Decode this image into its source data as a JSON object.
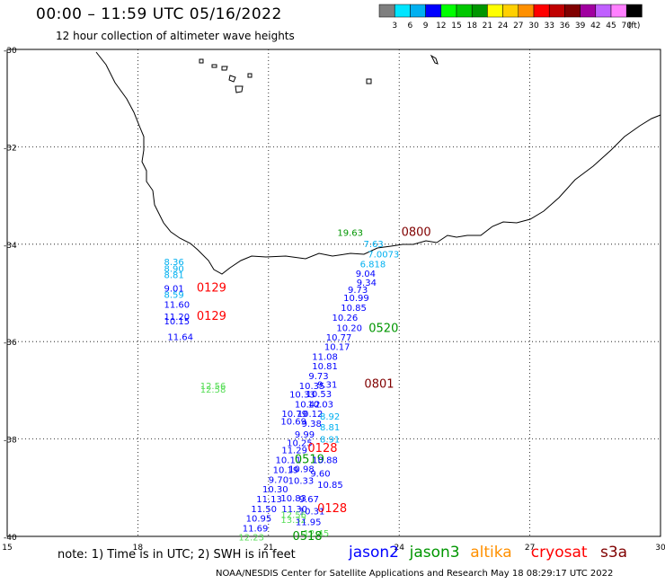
{
  "header": {
    "title": "00:00 – 11:59 UTC 05/16/2022",
    "subtitle": "12 hour collection of altimeter wave heights"
  },
  "colorbar": {
    "colors": [
      "#7f7f7f",
      "#00e5ff",
      "#00b0f0",
      "#0000ff",
      "#00ff00",
      "#00c800",
      "#009600",
      "#ffff00",
      "#ffd000",
      "#ff9000",
      "#ff0000",
      "#c00000",
      "#800000",
      "#a000a0",
      "#c060ff",
      "#ff80ff",
      "#000000"
    ],
    "labels": [
      "3",
      "6",
      "9",
      "12",
      "15",
      "18",
      "21",
      "24",
      "27",
      "30",
      "33",
      "36",
      "39",
      "42",
      "45",
      "70"
    ],
    "unit": "(ft)"
  },
  "axes": {
    "lat_labels": [
      "-30",
      "-32",
      "-34",
      "-36",
      "-38",
      "-40"
    ],
    "lon_labels": [
      "15",
      "18",
      "21",
      "24",
      "27",
      "30"
    ]
  },
  "points": [
    {
      "text": "19.63",
      "lon": 22.58,
      "lat": -33.83,
      "color": "#009600"
    },
    {
      "text": "0800",
      "lon": 24.05,
      "lat": -33.83,
      "color": "#800000",
      "big": true
    },
    {
      "text": "7.63",
      "lon": 23.18,
      "lat": -34.06,
      "color": "#00b0f0"
    },
    {
      "text": "7.0073",
      "lon": 23.28,
      "lat": -34.27,
      "color": "#00b0f0"
    },
    {
      "text": "6.818",
      "lon": 23.1,
      "lat": -34.47,
      "color": "#00b0f0"
    },
    {
      "text": "9.04",
      "lon": 23.0,
      "lat": -34.67,
      "color": "#0000ff"
    },
    {
      "text": "9.34",
      "lon": 23.02,
      "lat": -34.85,
      "color": "#0000ff"
    },
    {
      "text": "9.73",
      "lon": 22.82,
      "lat": -35.0,
      "color": "#0000ff"
    },
    {
      "text": "10.99",
      "lon": 22.72,
      "lat": -35.17,
      "color": "#0000ff"
    },
    {
      "text": "10.85",
      "lon": 22.66,
      "lat": -35.37,
      "color": "#0000ff"
    },
    {
      "text": "10.26",
      "lon": 22.46,
      "lat": -35.57,
      "color": "#0000ff"
    },
    {
      "text": "0520",
      "lon": 23.3,
      "lat": -35.8,
      "color": "#009600",
      "big": true
    },
    {
      "text": "10.20",
      "lon": 22.56,
      "lat": -35.78,
      "color": "#0000ff"
    },
    {
      "text": "10.77",
      "lon": 22.32,
      "lat": -35.98,
      "color": "#0000ff"
    },
    {
      "text": "10.17",
      "lon": 22.28,
      "lat": -36.17,
      "color": "#0000ff"
    },
    {
      "text": "11.08",
      "lon": 22.0,
      "lat": -36.37,
      "color": "#0000ff"
    },
    {
      "text": "10.81",
      "lon": 22.0,
      "lat": -36.57,
      "color": "#0000ff"
    },
    {
      "text": "9.73",
      "lon": 21.92,
      "lat": -36.77,
      "color": "#0000ff"
    },
    {
      "text": "9.31",
      "lon": 22.12,
      "lat": -36.95,
      "color": "#0000ff"
    },
    {
      "text": "0801",
      "lon": 23.2,
      "lat": -36.95,
      "color": "#800000",
      "big": true
    },
    {
      "text": "10.35",
      "lon": 21.7,
      "lat": -36.97,
      "color": "#0000ff"
    },
    {
      "text": "10.53",
      "lon": 21.86,
      "lat": -37.14,
      "color": "#0000ff"
    },
    {
      "text": "10.33",
      "lon": 21.48,
      "lat": -37.15,
      "color": "#0000ff"
    },
    {
      "text": "10.42",
      "lon": 21.6,
      "lat": -37.35,
      "color": "#0000ff"
    },
    {
      "text": "10.03",
      "lon": 21.9,
      "lat": -37.35,
      "color": "#0000ff"
    },
    {
      "text": "10.12",
      "lon": 21.66,
      "lat": -37.55,
      "color": "#0000ff"
    },
    {
      "text": "8.92",
      "lon": 22.18,
      "lat": -37.6,
      "color": "#00b0f0"
    },
    {
      "text": "10.79",
      "lon": 21.3,
      "lat": -37.55,
      "color": "#0000ff"
    },
    {
      "text": "10.69",
      "lon": 21.28,
      "lat": -37.7,
      "color": "#0000ff"
    },
    {
      "text": "9.38",
      "lon": 21.76,
      "lat": -37.75,
      "color": "#0000ff"
    },
    {
      "text": "8.81",
      "lon": 22.18,
      "lat": -37.82,
      "color": "#00b0f0"
    },
    {
      "text": "9.99",
      "lon": 21.6,
      "lat": -37.97,
      "color": "#0000ff"
    },
    {
      "text": "8.91",
      "lon": 22.18,
      "lat": -38.07,
      "color": "#00b0f0"
    },
    {
      "text": "10.25",
      "lon": 21.42,
      "lat": -38.15,
      "color": "#0000ff"
    },
    {
      "text": "11.29",
      "lon": 21.3,
      "lat": -38.29,
      "color": "#0000ff"
    },
    {
      "text": "0128",
      "lon": 21.9,
      "lat": -38.27,
      "color": "#ff0000",
      "big": true
    },
    {
      "text": "10.11",
      "lon": 21.16,
      "lat": -38.5,
      "color": "#0000ff"
    },
    {
      "text": "0519",
      "lon": 21.6,
      "lat": -38.5,
      "color": "#009600",
      "big": true
    },
    {
      "text": "10.88",
      "lon": 22.0,
      "lat": -38.5,
      "color": "#0000ff"
    },
    {
      "text": "10.19",
      "lon": 21.1,
      "lat": -38.7,
      "color": "#0000ff"
    },
    {
      "text": "10.98",
      "lon": 21.46,
      "lat": -38.68,
      "color": "#0000ff"
    },
    {
      "text": "9.60",
      "lon": 21.96,
      "lat": -38.77,
      "color": "#0000ff"
    },
    {
      "text": "9.70",
      "lon": 21.0,
      "lat": -38.9,
      "color": "#0000ff"
    },
    {
      "text": "10.33",
      "lon": 21.45,
      "lat": -38.92,
      "color": "#0000ff"
    },
    {
      "text": "10.85",
      "lon": 22.12,
      "lat": -39.0,
      "color": "#0000ff"
    },
    {
      "text": "10.30",
      "lon": 20.86,
      "lat": -39.1,
      "color": "#0000ff"
    },
    {
      "text": "11.13",
      "lon": 20.72,
      "lat": -39.3,
      "color": "#0000ff"
    },
    {
      "text": "10.83",
      "lon": 21.28,
      "lat": -39.28,
      "color": "#0000ff"
    },
    {
      "text": "9.67",
      "lon": 21.7,
      "lat": -39.3,
      "color": "#0000ff"
    },
    {
      "text": "11.50",
      "lon": 20.6,
      "lat": -39.5,
      "color": "#0000ff"
    },
    {
      "text": "11.30",
      "lon": 21.3,
      "lat": -39.5,
      "color": "#0000ff"
    },
    {
      "text": "10.31",
      "lon": 21.7,
      "lat": -39.55,
      "color": "#0000ff"
    },
    {
      "text": "0128",
      "lon": 22.12,
      "lat": -39.5,
      "color": "#ff0000",
      "big": true
    },
    {
      "text": "12.56",
      "lon": 21.28,
      "lat": -39.62,
      "color": "#55dd55"
    },
    {
      "text": "10.95",
      "lon": 20.48,
      "lat": -39.7,
      "color": "#0000ff"
    },
    {
      "text": "13.32",
      "lon": 21.28,
      "lat": -39.72,
      "color": "#55dd55"
    },
    {
      "text": "11.95",
      "lon": 21.62,
      "lat": -39.77,
      "color": "#0000ff"
    },
    {
      "text": "11.69",
      "lon": 20.4,
      "lat": -39.9,
      "color": "#0000ff"
    },
    {
      "text": "12.45",
      "lon": 21.8,
      "lat": -40.0,
      "color": "#55dd55"
    },
    {
      "text": "12.23",
      "lon": 20.31,
      "lat": -40.08,
      "color": "#55dd55"
    },
    {
      "text": "0518",
      "lon": 21.55,
      "lat": -40.07,
      "color": "#009600",
      "big": true
    },
    {
      "text": "8.36",
      "lon": 18.6,
      "lat": -34.43,
      "color": "#00b0f0"
    },
    {
      "text": "8.90",
      "lon": 18.6,
      "lat": -34.57,
      "color": "#00b0f0"
    },
    {
      "text": "8.81",
      "lon": 18.6,
      "lat": -34.7,
      "color": "#00b0f0"
    },
    {
      "text": "9.01",
      "lon": 18.6,
      "lat": -34.97,
      "color": "#0000ff"
    },
    {
      "text": "0129",
      "lon": 19.35,
      "lat": -34.97,
      "color": "#ff0000",
      "big": true
    },
    {
      "text": "8.59",
      "lon": 18.6,
      "lat": -35.1,
      "color": "#00b0f0"
    },
    {
      "text": "11.60",
      "lon": 18.6,
      "lat": -35.3,
      "color": "#0000ff"
    },
    {
      "text": "11.20",
      "lon": 18.6,
      "lat": -35.55,
      "color": "#0000ff"
    },
    {
      "text": "0129",
      "lon": 19.35,
      "lat": -35.55,
      "color": "#ff0000",
      "big": true
    },
    {
      "text": "10.15",
      "lon": 18.6,
      "lat": -35.65,
      "color": "#0000ff"
    },
    {
      "text": "11.64",
      "lon": 18.68,
      "lat": -35.97,
      "color": "#0000ff"
    },
    {
      "text": "12.56",
      "lon": 19.43,
      "lat": -36.97,
      "color": "#55dd55"
    },
    {
      "text": "12.58",
      "lon": 19.43,
      "lat": -37.05,
      "color": "#55dd55"
    }
  ],
  "note": "note:  1) Time is in UTC;  2) SWH is in feet",
  "satellites": [
    {
      "name": "jason2",
      "color": "#0000ff"
    },
    {
      "name": "jason3",
      "color": "#009600"
    },
    {
      "name": "altika",
      "color": "#ff9000"
    },
    {
      "name": "cryosat",
      "color": "#ff0000"
    },
    {
      "name": "s3a",
      "color": "#800000"
    }
  ],
  "credit": "NOAA/NESDIS Center for Satellite Applications and Research    May 18 08:29:17 UTC 2022"
}
